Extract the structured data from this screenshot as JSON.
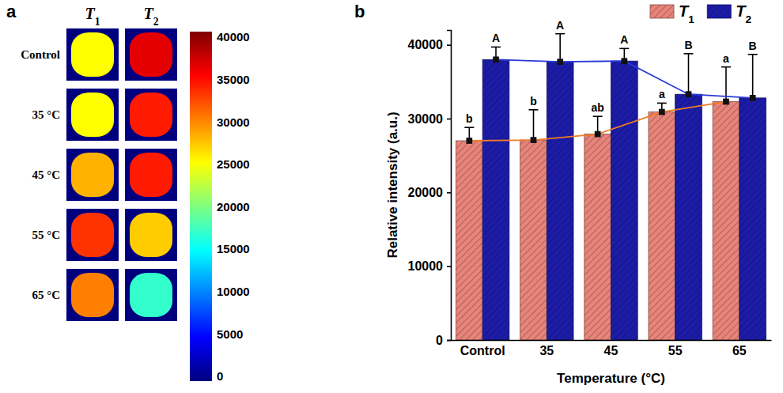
{
  "chart_data": [
    {
      "type": "heatmap",
      "title": "a",
      "columns": [
        "T1",
        "T2"
      ],
      "rows": [
        "Control",
        "35 °C",
        "45 °C",
        "55 °C",
        "65 °C"
      ],
      "cells": [
        [
          25000,
          36000
        ],
        [
          25000,
          34000
        ],
        [
          28000,
          34000
        ],
        [
          33000,
          27000
        ],
        [
          30000,
          17000
        ]
      ],
      "color_range": [
        0,
        40000
      ],
      "color_ticks": [
        0,
        5000,
        10000,
        15000,
        20000,
        25000,
        30000,
        35000,
        40000
      ]
    },
    {
      "type": "bar",
      "title": "b",
      "categories": [
        "Control",
        "35",
        "45",
        "55",
        "65"
      ],
      "x_label": "Temperature (°C)",
      "y_label": "Relative intensity (a.u.)",
      "ylim": [
        0,
        42000
      ],
      "yticks": [
        0,
        10000,
        20000,
        30000,
        40000
      ],
      "legend": "upper right",
      "series": [
        {
          "name": "T1",
          "color": "#e8847a",
          "marker": "square",
          "values": [
            27000,
            27100,
            27900,
            30900,
            32300
          ],
          "errors": [
            1800,
            4100,
            2400,
            1200,
            4700
          ],
          "letters": [
            "b",
            "b",
            "ab",
            "a",
            "a"
          ]
        },
        {
          "name": "T2",
          "color": "#1c1ca8",
          "marker": "square",
          "values": [
            38000,
            37700,
            37800,
            33300,
            32800
          ],
          "errors": [
            1700,
            3800,
            1700,
            5500,
            5900
          ],
          "letters": [
            "A",
            "A",
            "A",
            "B",
            "B"
          ]
        }
      ]
    }
  ]
}
